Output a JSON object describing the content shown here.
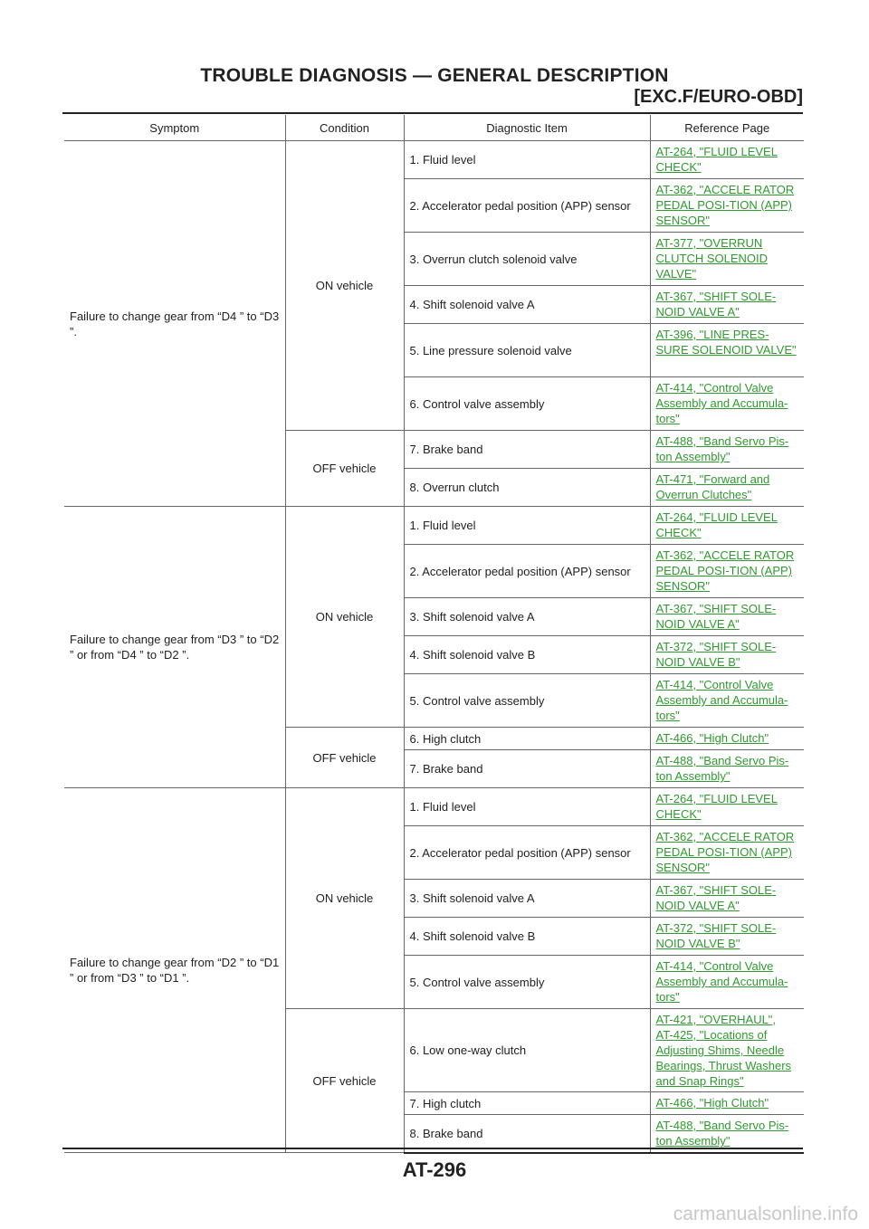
{
  "header": {
    "title": "TROUBLE DIAGNOSIS — GENERAL DESCRIPTION",
    "subtitle": "[EXC.F/EURO-OBD]"
  },
  "table": {
    "columns": [
      "Symptom",
      "Condition",
      "Diagnostic Item",
      "Reference Page"
    ],
    "groups": [
      {
        "symptom": "Failure to change gear from “D4 ” to “D3 ”.",
        "conditions": [
          {
            "label": "ON vehicle",
            "items": [
              {
                "item": "1. Fluid level",
                "refs": [
                  "AT-264, \"FLUID LEVEL CHECK\""
                ]
              },
              {
                "item": "2. Accelerator pedal position (APP) sensor",
                "refs": [
                  "AT-362, \"ACCELE RATOR PEDAL POSI-TION (APP) SENSOR\""
                ]
              },
              {
                "item": "3. Overrun clutch solenoid valve",
                "refs": [
                  "AT-377, \"OVERRUN CLUTCH SOLENOID VALVE\""
                ]
              },
              {
                "item": "4. Shift solenoid valve A",
                "refs": [
                  "AT-367, \"SHIFT SOLE-NOID VALVE A\""
                ]
              },
              {
                "item": "5. Line pressure solenoid valve",
                "refs": [
                  "AT-396, \"LINE PRES-SURE SOLENOID VALVE\""
                ]
              },
              {
                "item": "6. Control valve assembly",
                "refs": [
                  "AT-414, \"Control Valve Assembly and Accumula-tors\""
                ]
              }
            ]
          },
          {
            "label": "OFF vehicle",
            "items": [
              {
                "item": "7. Brake band",
                "refs": [
                  "AT-488, \"Band Servo Pis-ton Assembly\""
                ]
              },
              {
                "item": "8. Overrun clutch",
                "refs": [
                  "AT-471, \"Forward and Overrun Clutches\""
                ]
              }
            ]
          }
        ]
      },
      {
        "symptom": "Failure to change gear from “D3 ” to “D2 ” or from “D4 ” to “D2 ”.",
        "conditions": [
          {
            "label": "ON vehicle",
            "items": [
              {
                "item": "1. Fluid level",
                "refs": [
                  "AT-264, \"FLUID LEVEL CHECK\""
                ]
              },
              {
                "item": "2. Accelerator pedal position (APP) sensor",
                "refs": [
                  "AT-362, \"ACCELE RATOR PEDAL POSI-TION (APP) SENSOR\""
                ]
              },
              {
                "item": "3. Shift solenoid valve A",
                "refs": [
                  "AT-367, \"SHIFT SOLE-NOID VALVE A\""
                ]
              },
              {
                "item": "4. Shift solenoid valve B",
                "refs": [
                  "AT-372, \"SHIFT SOLE-NOID VALVE B\""
                ]
              },
              {
                "item": "5. Control valve assembly",
                "refs": [
                  "AT-414, \"Control Valve Assembly and Accumula-tors\""
                ]
              }
            ]
          },
          {
            "label": "OFF vehicle",
            "items": [
              {
                "item": "6. High clutch",
                "refs": [
                  "AT-466, \"High Clutch\""
                ]
              },
              {
                "item": "7. Brake band",
                "refs": [
                  "AT-488, \"Band Servo Pis-ton Assembly\""
                ]
              }
            ]
          }
        ]
      },
      {
        "symptom": "Failure to change gear from “D2 ” to “D1 ” or from “D3 ” to “D1 ”.",
        "conditions": [
          {
            "label": "ON vehicle",
            "items": [
              {
                "item": "1. Fluid level",
                "refs": [
                  "AT-264, \"FLUID LEVEL CHECK\""
                ]
              },
              {
                "item": "2. Accelerator pedal position (APP) sensor",
                "refs": [
                  "AT-362, \"ACCELE RATOR PEDAL POSI-TION (APP) SENSOR\""
                ]
              },
              {
                "item": "3. Shift solenoid valve A",
                "refs": [
                  "AT-367, \"SHIFT SOLE-NOID VALVE A\""
                ]
              },
              {
                "item": "4. Shift solenoid valve B",
                "refs": [
                  "AT-372, \"SHIFT SOLE-NOID VALVE B\""
                ]
              },
              {
                "item": "5. Control valve assembly",
                "refs": [
                  "AT-414, \"Control Valve Assembly and Accumula-tors\""
                ]
              }
            ]
          },
          {
            "label": "OFF vehicle",
            "items": [
              {
                "item": "6. Low one-way clutch",
                "refs": [
                  "AT-421, \"OVERHAUL\",",
                  "AT-425, \"Locations of Adjusting Shims, Needle Bearings, Thrust Washers and Snap Rings\""
                ]
              },
              {
                "item": "7. High clutch",
                "refs": [
                  "AT-466, \"High Clutch\""
                ]
              },
              {
                "item": "8. Brake band",
                "refs": [
                  "AT-488, \"Band Servo Pis-ton Assembly\""
                ]
              }
            ]
          }
        ]
      }
    ]
  },
  "footer": {
    "page_number": "AT-296",
    "watermark": "carmanualsonline.info"
  }
}
